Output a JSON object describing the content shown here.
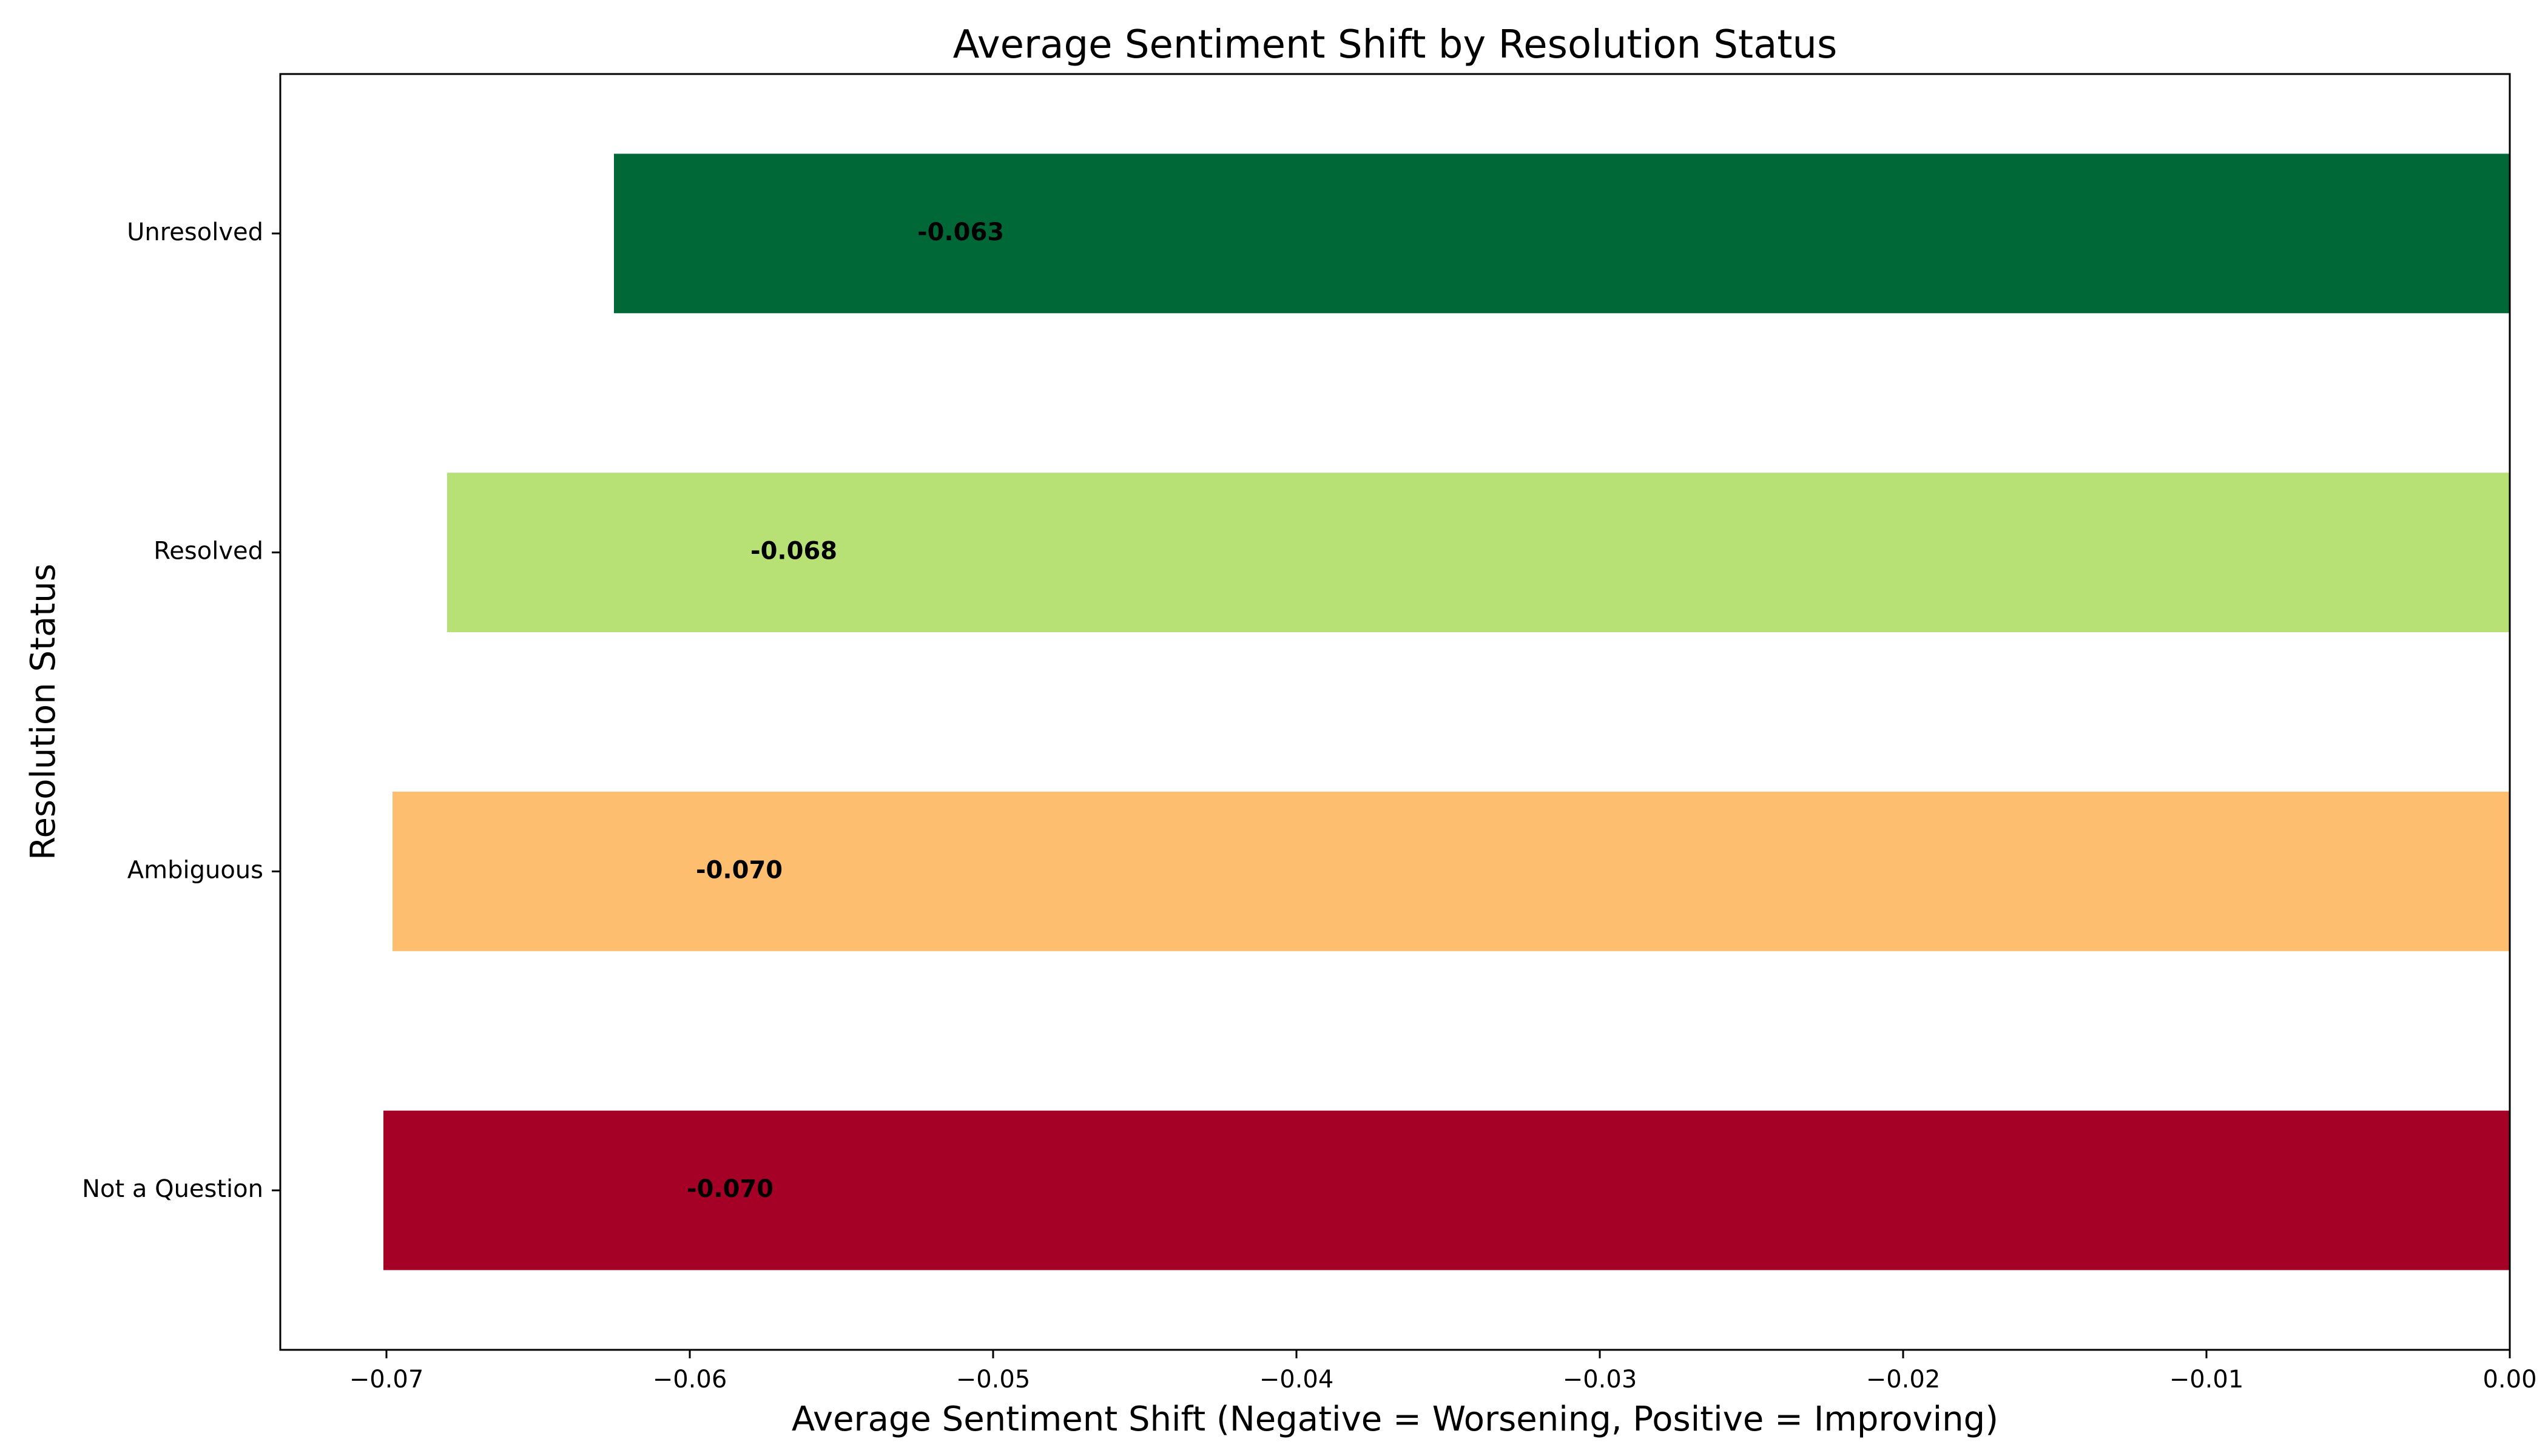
{
  "chart_data": {
    "type": "bar",
    "orientation": "horizontal",
    "title": "Average Sentiment Shift by Resolution Status",
    "xlabel": "Average Sentiment Shift (Negative = Worsening, Positive = Improving)",
    "ylabel": "Resolution Status",
    "categories": [
      "Not a Question",
      "Ambiguous",
      "Resolved",
      "Unresolved"
    ],
    "values": [
      -0.0701,
      -0.0698,
      -0.068,
      -0.0625
    ],
    "value_labels": [
      "-0.070",
      "-0.070",
      "-0.068",
      "-0.063"
    ],
    "colors": [
      "#a50026",
      "#fdbf6f",
      "#b7e075",
      "#006837"
    ],
    "xlim": [
      -0.0735,
      0.0
    ],
    "xticks": [
      -0.07,
      -0.06,
      -0.05,
      -0.04,
      -0.03,
      -0.02,
      -0.01,
      0.0
    ],
    "xtick_labels": [
      "−0.07",
      "−0.06",
      "−0.05",
      "−0.04",
      "−0.03",
      "−0.02",
      "−0.01",
      "0.00"
    ],
    "reference_line": {
      "x": 0.0,
      "style": "dashed"
    },
    "grid": false,
    "legend": "none"
  }
}
